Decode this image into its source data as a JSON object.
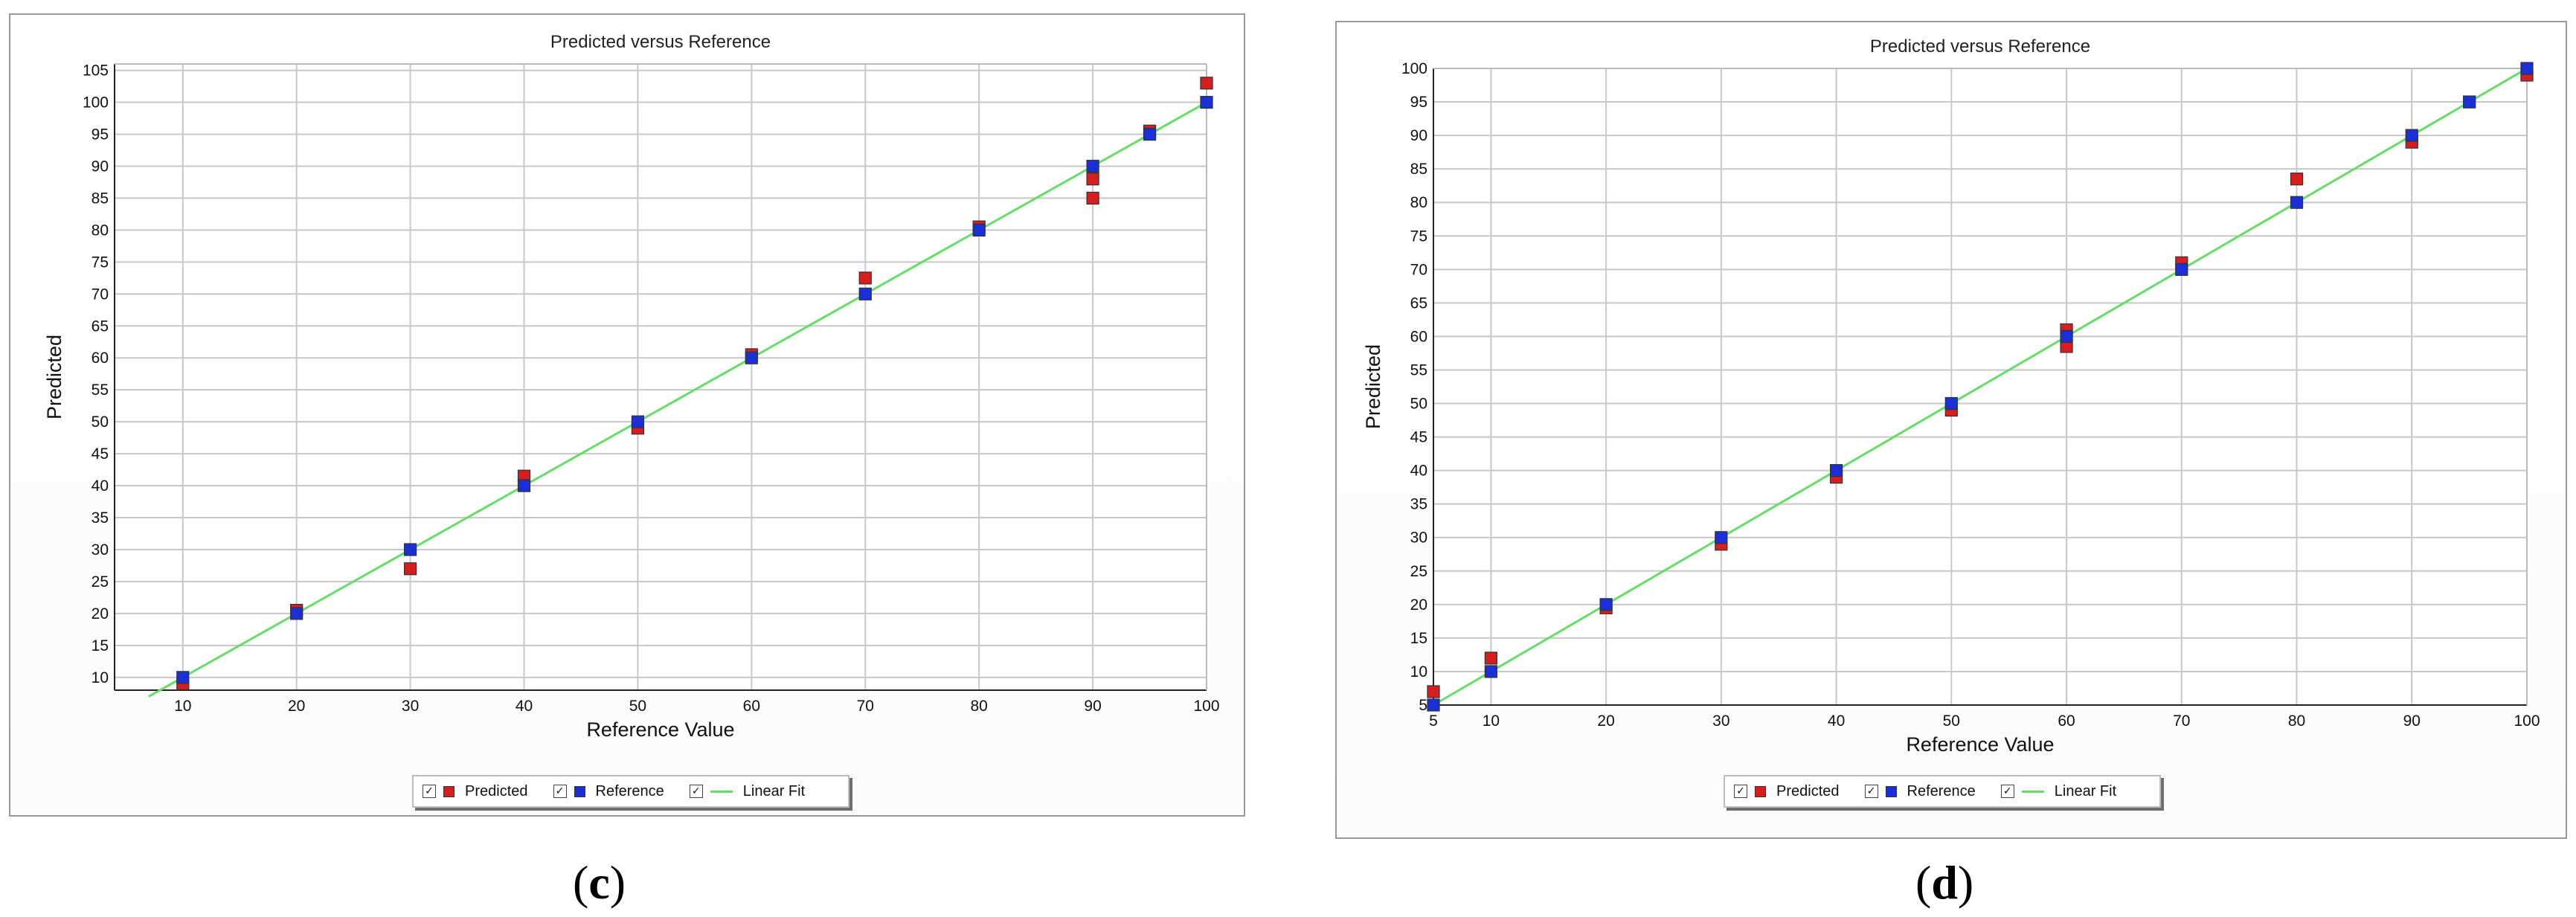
{
  "captions": [
    {
      "open": "(",
      "letter": "c",
      "close": ")"
    },
    {
      "open": "(",
      "letter": "d",
      "close": ")"
    }
  ],
  "colors": {
    "predicted": "#d61e1e",
    "reference": "#1a2fd6",
    "linear_fit": "#66dd66",
    "grid": "#c8c8c8"
  },
  "legend": [
    {
      "check": "✓",
      "label": "Predicted",
      "kind": "square",
      "color": "#d61e1e"
    },
    {
      "check": "✓",
      "label": "Reference",
      "kind": "square",
      "color": "#1a2fd6"
    },
    {
      "check": "✓",
      "label": "Linear Fit",
      "kind": "line",
      "color": "#66dd66"
    }
  ],
  "chart_data": [
    {
      "type": "scatter",
      "title": "Predicted versus Reference",
      "xlabel": "Reference Value",
      "ylabel": "Predicted",
      "xlim": [
        4,
        100
      ],
      "ylim": [
        8,
        106
      ],
      "xticks": [
        10,
        20,
        30,
        40,
        50,
        60,
        70,
        80,
        90,
        100
      ],
      "yticks": [
        10,
        15,
        20,
        25,
        30,
        35,
        40,
        45,
        50,
        55,
        60,
        65,
        70,
        75,
        80,
        85,
        90,
        95,
        100,
        105
      ],
      "grid": true,
      "legend_position": "bottom-center",
      "series": [
        {
          "name": "Predicted",
          "marker": "square",
          "x": [
            10,
            20,
            30,
            40,
            50,
            60,
            70,
            80,
            90,
            90,
            95,
            100
          ],
          "y": [
            9,
            20.5,
            27,
            41.5,
            49,
            60.5,
            72.5,
            80.5,
            85,
            88,
            95.5,
            103
          ]
        },
        {
          "name": "Reference",
          "marker": "square",
          "x": [
            10,
            20,
            30,
            40,
            50,
            60,
            70,
            80,
            90,
            95,
            100
          ],
          "y": [
            10,
            20,
            30,
            40,
            50,
            60,
            70,
            80,
            90,
            95,
            100
          ]
        },
        {
          "name": "Linear Fit",
          "marker": "line",
          "x": [
            7,
            100
          ],
          "y": [
            7,
            100
          ]
        }
      ]
    },
    {
      "type": "scatter",
      "title": "Predicted versus Reference",
      "xlabel": "Reference Value",
      "ylabel": "Predicted",
      "xlim": [
        5,
        100
      ],
      "ylim": [
        5,
        100
      ],
      "xticks": [
        5,
        10,
        20,
        30,
        40,
        50,
        60,
        70,
        80,
        90,
        100
      ],
      "yticks": [
        5,
        10,
        15,
        20,
        25,
        30,
        35,
        40,
        45,
        50,
        55,
        60,
        65,
        70,
        75,
        80,
        85,
        90,
        95,
        100
      ],
      "grid": true,
      "legend_position": "bottom-center",
      "series": [
        {
          "name": "Predicted",
          "marker": "square",
          "x": [
            5,
            10,
            20,
            30,
            40,
            50,
            60,
            60,
            70,
            80,
            90,
            95,
            100
          ],
          "y": [
            7,
            12,
            19.5,
            29,
            39,
            49,
            58.5,
            61,
            71,
            83.5,
            89,
            95,
            99
          ]
        },
        {
          "name": "Reference",
          "marker": "square",
          "x": [
            5,
            10,
            20,
            30,
            40,
            50,
            60,
            70,
            80,
            90,
            95,
            100
          ],
          "y": [
            5,
            10,
            20,
            30,
            40,
            50,
            60,
            70,
            80,
            90,
            95,
            100
          ]
        },
        {
          "name": "Linear Fit",
          "marker": "line",
          "x": [
            5,
            100
          ],
          "y": [
            5,
            100
          ]
        }
      ]
    }
  ]
}
